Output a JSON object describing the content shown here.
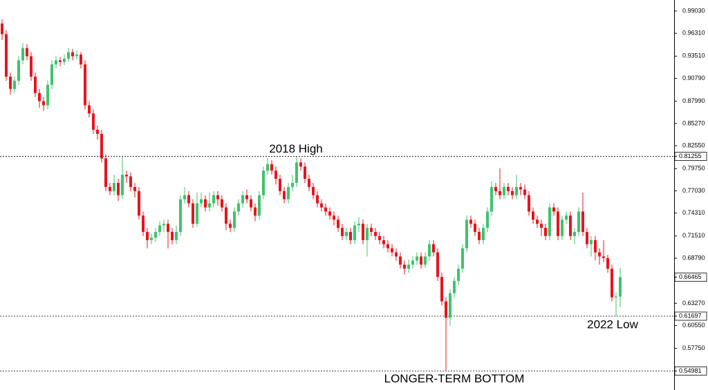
{
  "chart_data": {
    "type": "candlestick",
    "up_color": "#3dc46b",
    "down_color": "#e8141c",
    "ylim": [
      0.5266,
      1.0038
    ],
    "yticks": [
      {
        "value": 0.9903,
        "label": "0.99030"
      },
      {
        "value": 0.9631,
        "label": "0.96310"
      },
      {
        "value": 0.9351,
        "label": "0.93510"
      },
      {
        "value": 0.9079,
        "label": "0.90790"
      },
      {
        "value": 0.8799,
        "label": "0.87990"
      },
      {
        "value": 0.8527,
        "label": "0.85270"
      },
      {
        "value": 0.8255,
        "label": "0.82550"
      },
      {
        "value": 0.7975,
        "label": "0.79750"
      },
      {
        "value": 0.7703,
        "label": "0.77030"
      },
      {
        "value": 0.7431,
        "label": "0.74310"
      },
      {
        "value": 0.7151,
        "label": "0.71510"
      },
      {
        "value": 0.6879,
        "label": "0.68790"
      },
      {
        "value": 0.6327,
        "label": "0.63270"
      },
      {
        "value": 0.6055,
        "label": "0.60550"
      },
      {
        "value": 0.5775,
        "label": "0.57750"
      }
    ],
    "levels": [
      0.81255,
      0.61697,
      0.54981
    ],
    "last_price": 0.66465,
    "annotations": [
      {
        "text": "2018 High",
        "value": 0.81255
      },
      {
        "text": "2022 Low",
        "value": 0.61697
      },
      {
        "text": "LONGER-TERM BOTTOM",
        "value": 0.54981
      }
    ],
    "open": [
      0.975,
      0.962,
      0.91,
      0.895,
      0.905,
      0.93,
      0.945,
      0.935,
      0.91,
      0.89,
      0.88,
      0.875,
      0.9,
      0.925,
      0.93,
      0.928,
      0.932,
      0.94,
      0.935,
      0.937,
      0.925,
      0.875,
      0.865,
      0.845,
      0.84,
      0.81,
      0.775,
      0.77,
      0.78,
      0.765,
      0.79,
      0.788,
      0.775,
      0.77,
      0.74,
      0.72,
      0.71,
      0.713,
      0.72,
      0.728,
      0.73,
      0.72,
      0.71,
      0.72,
      0.76,
      0.765,
      0.755,
      0.73,
      0.755,
      0.76,
      0.75,
      0.755,
      0.765,
      0.76,
      0.75,
      0.73,
      0.725,
      0.745,
      0.755,
      0.765,
      0.76,
      0.75,
      0.74,
      0.765,
      0.795,
      0.803,
      0.795,
      0.785,
      0.77,
      0.76,
      0.775,
      0.78,
      0.805,
      0.8,
      0.785,
      0.775,
      0.765,
      0.755,
      0.75,
      0.745,
      0.74,
      0.735,
      0.725,
      0.715,
      0.72,
      0.71,
      0.728,
      0.73,
      0.71,
      0.725,
      0.72,
      0.715,
      0.71,
      0.705,
      0.7,
      0.695,
      0.69,
      0.68,
      0.675,
      0.68,
      0.685,
      0.69,
      0.68,
      0.69,
      0.705,
      0.695,
      0.665,
      0.635,
      0.615,
      0.645,
      0.66,
      0.675,
      0.7,
      0.735,
      0.73,
      0.72,
      0.71,
      0.725,
      0.745,
      0.775,
      0.77,
      0.765,
      0.775,
      0.77,
      0.765,
      0.775,
      0.772,
      0.765,
      0.745,
      0.735,
      0.73,
      0.725,
      0.715,
      0.75,
      0.745,
      0.715,
      0.735,
      0.74,
      0.715,
      0.72,
      0.745,
      0.72,
      0.705,
      0.71,
      0.695,
      0.69,
      0.688,
      0.675,
      0.64,
      0.641
    ],
    "high": [
      0.98,
      0.967,
      0.915,
      0.91,
      0.935,
      0.951,
      0.95,
      0.94,
      0.915,
      0.895,
      0.885,
      0.905,
      0.93,
      0.935,
      0.934,
      0.937,
      0.945,
      0.944,
      0.942,
      0.94,
      0.93,
      0.88,
      0.87,
      0.85,
      0.845,
      0.815,
      0.78,
      0.79,
      0.785,
      0.812,
      0.795,
      0.793,
      0.78,
      0.775,
      0.745,
      0.725,
      0.718,
      0.725,
      0.733,
      0.735,
      0.735,
      0.725,
      0.728,
      0.765,
      0.775,
      0.77,
      0.76,
      0.768,
      0.768,
      0.765,
      0.768,
      0.77,
      0.77,
      0.765,
      0.755,
      0.735,
      0.75,
      0.76,
      0.77,
      0.772,
      0.765,
      0.755,
      0.77,
      0.8,
      0.81,
      0.808,
      0.8,
      0.79,
      0.775,
      0.78,
      0.79,
      0.81255,
      0.81,
      0.805,
      0.79,
      0.78,
      0.77,
      0.76,
      0.755,
      0.75,
      0.745,
      0.74,
      0.73,
      0.725,
      0.725,
      0.733,
      0.738,
      0.735,
      0.73,
      0.73,
      0.725,
      0.72,
      0.715,
      0.71,
      0.705,
      0.7,
      0.695,
      0.685,
      0.686,
      0.69,
      0.695,
      0.695,
      0.695,
      0.71,
      0.71,
      0.7,
      0.67,
      0.64,
      0.65,
      0.665,
      0.68,
      0.705,
      0.74,
      0.74,
      0.735,
      0.725,
      0.73,
      0.75,
      0.782,
      0.78,
      0.798,
      0.78,
      0.78,
      0.775,
      0.79,
      0.78,
      0.778,
      0.77,
      0.75,
      0.74,
      0.735,
      0.73,
      0.755,
      0.755,
      0.75,
      0.74,
      0.745,
      0.745,
      0.725,
      0.75,
      0.768,
      0.725,
      0.715,
      0.715,
      0.7,
      0.71,
      0.692,
      0.68,
      0.646,
      0.676
    ],
    "low": [
      0.955,
      0.905,
      0.888,
      0.89,
      0.9,
      0.925,
      0.93,
      0.905,
      0.885,
      0.872,
      0.868,
      0.87,
      0.895,
      0.92,
      0.923,
      0.924,
      0.928,
      0.93,
      0.931,
      0.92,
      0.87,
      0.86,
      0.84,
      0.833,
      0.805,
      0.77,
      0.765,
      0.765,
      0.758,
      0.76,
      0.78,
      0.77,
      0.762,
      0.735,
      0.715,
      0.7,
      0.705,
      0.708,
      0.715,
      0.72,
      0.7,
      0.705,
      0.705,
      0.715,
      0.755,
      0.75,
      0.725,
      0.726,
      0.75,
      0.745,
      0.745,
      0.75,
      0.752,
      0.745,
      0.722,
      0.72,
      0.72,
      0.74,
      0.75,
      0.755,
      0.745,
      0.733,
      0.735,
      0.76,
      0.79,
      0.79,
      0.778,
      0.765,
      0.755,
      0.755,
      0.77,
      0.775,
      0.795,
      0.78,
      0.77,
      0.76,
      0.75,
      0.745,
      0.74,
      0.735,
      0.728,
      0.72,
      0.71,
      0.71,
      0.705,
      0.705,
      0.72,
      0.705,
      0.69,
      0.715,
      0.71,
      0.705,
      0.7,
      0.695,
      0.69,
      0.685,
      0.675,
      0.668,
      0.67,
      0.675,
      0.68,
      0.675,
      0.676,
      0.685,
      0.69,
      0.66,
      0.63,
      0.54981,
      0.605,
      0.64,
      0.655,
      0.67,
      0.695,
      0.725,
      0.715,
      0.705,
      0.705,
      0.72,
      0.74,
      0.765,
      0.76,
      0.76,
      0.765,
      0.76,
      0.76,
      0.765,
      0.76,
      0.74,
      0.73,
      0.725,
      0.715,
      0.71,
      0.71,
      0.74,
      0.71,
      0.71,
      0.73,
      0.71,
      0.705,
      0.715,
      0.715,
      0.7,
      0.69,
      0.685,
      0.68,
      0.683,
      0.67,
      0.635,
      0.61697,
      0.628
    ],
    "close": [
      0.962,
      0.91,
      0.895,
      0.905,
      0.93,
      0.945,
      0.935,
      0.91,
      0.89,
      0.88,
      0.875,
      0.9,
      0.925,
      0.93,
      0.928,
      0.932,
      0.94,
      0.935,
      0.937,
      0.925,
      0.875,
      0.865,
      0.845,
      0.84,
      0.81,
      0.775,
      0.77,
      0.78,
      0.765,
      0.79,
      0.788,
      0.775,
      0.77,
      0.74,
      0.72,
      0.71,
      0.713,
      0.72,
      0.728,
      0.73,
      0.72,
      0.71,
      0.72,
      0.76,
      0.765,
      0.755,
      0.73,
      0.755,
      0.76,
      0.75,
      0.755,
      0.765,
      0.76,
      0.75,
      0.73,
      0.725,
      0.745,
      0.755,
      0.765,
      0.76,
      0.75,
      0.74,
      0.765,
      0.795,
      0.803,
      0.795,
      0.785,
      0.77,
      0.76,
      0.775,
      0.78,
      0.805,
      0.8,
      0.785,
      0.775,
      0.765,
      0.755,
      0.75,
      0.745,
      0.74,
      0.735,
      0.725,
      0.715,
      0.72,
      0.71,
      0.728,
      0.73,
      0.71,
      0.725,
      0.72,
      0.715,
      0.71,
      0.705,
      0.7,
      0.695,
      0.69,
      0.68,
      0.675,
      0.68,
      0.685,
      0.69,
      0.68,
      0.69,
      0.705,
      0.695,
      0.665,
      0.635,
      0.615,
      0.645,
      0.66,
      0.675,
      0.7,
      0.735,
      0.73,
      0.72,
      0.71,
      0.725,
      0.745,
      0.775,
      0.77,
      0.765,
      0.775,
      0.77,
      0.765,
      0.775,
      0.772,
      0.765,
      0.745,
      0.735,
      0.73,
      0.725,
      0.715,
      0.75,
      0.745,
      0.715,
      0.735,
      0.74,
      0.715,
      0.72,
      0.745,
      0.72,
      0.705,
      0.71,
      0.695,
      0.69,
      0.688,
      0.675,
      0.64,
      0.641,
      0.66465
    ]
  }
}
